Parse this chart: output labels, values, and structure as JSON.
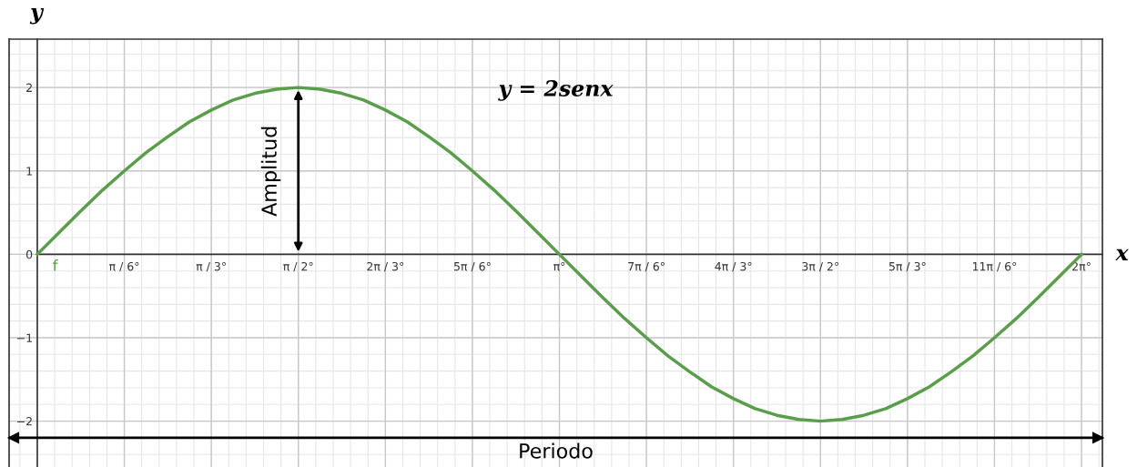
{
  "chart_data": {
    "type": "line",
    "xlabel": "x",
    "ylabel": "y",
    "annotations": [
      "y = 2senx",
      "Amplitud"
    ],
    "ref_lines": [
      {
        "axis": "y",
        "value": -2.2,
        "label": "Periodo",
        "color": "#000000",
        "line_style": "solid"
      }
    ],
    "categories": [
      null,
      null,
      null,
      null,
      "π / 6°",
      null,
      null,
      null,
      "π / 3°",
      null,
      null,
      null,
      "π / 2°",
      null,
      null,
      null,
      "2π / 3°",
      null,
      null,
      null,
      "5π / 6°",
      null,
      null,
      null,
      "π°",
      null,
      null,
      null,
      "7π / 6°",
      null,
      null,
      null,
      "4π / 3°",
      null,
      null,
      null,
      "3π / 2°",
      null,
      null,
      null,
      "5π / 3°",
      null,
      null,
      null,
      "11π / 6°",
      null,
      null,
      null,
      "2π°"
    ],
    "series": [
      {
        "name": "f",
        "color": "#5a9e4b",
        "values": [
          0,
          0.26,
          0.52,
          0.77,
          1,
          1.22,
          1.41,
          1.59,
          1.73,
          1.85,
          1.93,
          1.98,
          2,
          1.98,
          1.93,
          1.85,
          1.73,
          1.59,
          1.41,
          1.22,
          1,
          0.77,
          0.52,
          0.26,
          0,
          -0.26,
          -0.52,
          -0.77,
          -1,
          -1.22,
          -1.41,
          -1.59,
          -1.73,
          -1.85,
          -1.93,
          -1.98,
          -2,
          -1.98,
          -1.93,
          -1.85,
          -1.73,
          -1.59,
          -1.41,
          -1.22,
          -1,
          -0.77,
          -0.52,
          -0.26,
          0
        ]
      }
    ],
    "ylim": [
      -2.55,
      2.58
    ],
    "yticks": [
      {
        "value": -2,
        "label": "−2"
      },
      {
        "value": -1,
        "label": "−1"
      },
      0,
      1,
      2
    ],
    "grid": true,
    "marker": "none",
    "line_style": "solid",
    "legend": false
  }
}
